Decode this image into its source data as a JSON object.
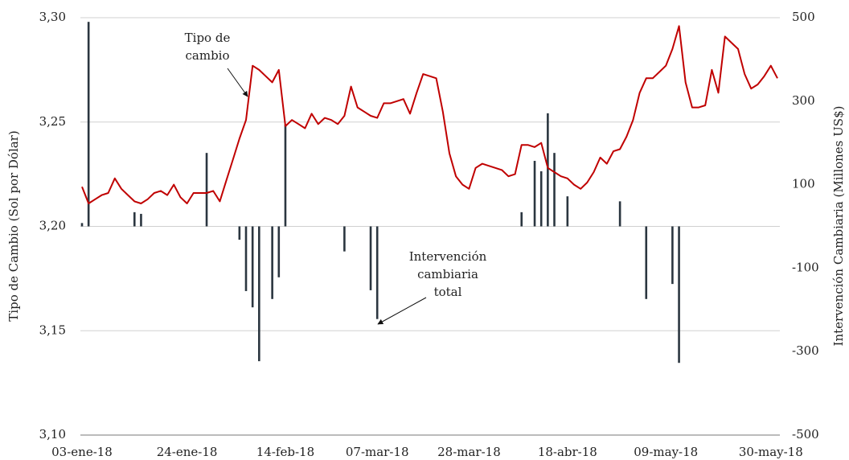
{
  "chart_data": {
    "type": "line",
    "y_label": "Tipo de Cambio (Sol por Dólar)",
    "y2_label": "Intervención Cambiaria (Millones US$)",
    "annotations": [
      "Tipo de",
      "cambio",
      "Intervención",
      "cambiaria",
      "total"
    ],
    "categories": [
      "03-ene-18",
      null,
      null,
      null,
      null,
      null,
      null,
      null,
      null,
      null,
      null,
      null,
      null,
      null,
      null,
      null,
      "24-ene-18",
      null,
      null,
      null,
      null,
      null,
      null,
      null,
      null,
      null,
      null,
      null,
      null,
      null,
      null,
      "14-feb-18",
      null,
      null,
      null,
      null,
      null,
      null,
      null,
      null,
      null,
      null,
      null,
      null,
      null,
      "07-mar-18",
      null,
      null,
      null,
      null,
      null,
      null,
      null,
      null,
      null,
      null,
      null,
      null,
      null,
      "28-mar-18",
      null,
      null,
      null,
      null,
      null,
      null,
      null,
      null,
      null,
      null,
      null,
      null,
      null,
      null,
      "18-abr-18",
      null,
      null,
      null,
      null,
      null,
      null,
      null,
      null,
      null,
      null,
      null,
      null,
      null,
      null,
      "09-may-18",
      null,
      null,
      null,
      null,
      null,
      null,
      null,
      null,
      null,
      null,
      null,
      null,
      null,
      null,
      null,
      "30-may-18",
      null
    ],
    "series": [
      {
        "name": "Tipo de cambio",
        "type": "line",
        "color": "#c00000",
        "values": [
          3.219,
          3.211,
          3.213,
          3.215,
          3.216,
          3.223,
          3.218,
          3.215,
          3.212,
          3.211,
          3.213,
          3.216,
          3.217,
          3.215,
          3.22,
          3.214,
          3.211,
          3.216,
          3.216,
          3.216,
          3.217,
          3.212,
          3.222,
          3.232,
          3.242,
          3.251,
          3.277,
          3.275,
          3.272,
          3.269,
          3.275,
          3.248,
          3.251,
          3.249,
          3.247,
          3.254,
          3.249,
          3.252,
          3.251,
          3.249,
          3.253,
          3.267,
          3.257,
          3.255,
          3.253,
          3.252,
          3.259,
          3.259,
          3.26,
          3.261,
          3.254,
          3.264,
          3.273,
          3.272,
          3.271,
          3.255,
          3.235,
          3.224,
          3.22,
          3.218,
          3.228,
          3.23,
          3.229,
          3.228,
          3.227,
          3.224,
          3.225,
          3.239,
          3.239,
          3.238,
          3.24,
          3.228,
          3.226,
          3.224,
          3.223,
          3.22,
          3.218,
          3.221,
          3.226,
          3.233,
          3.23,
          3.236,
          3.237,
          3.243,
          3.251,
          3.264,
          3.271,
          3.271,
          3.274,
          3.277,
          3.285,
          3.296,
          3.269,
          3.257,
          3.257,
          3.258,
          3.275,
          3.264,
          3.291,
          3.288,
          3.285,
          3.273,
          3.266,
          3.268,
          3.272,
          3.277,
          3.271
        ]
      },
      {
        "name": "Intervención cambiaria total",
        "type": "bar",
        "axis": "y2",
        "color": "#2b3640",
        "values": [
          8,
          490,
          null,
          null,
          null,
          null,
          null,
          null,
          34,
          30,
          null,
          null,
          null,
          null,
          null,
          null,
          null,
          null,
          null,
          176,
          null,
          null,
          null,
          null,
          -32,
          -155,
          -194,
          -323,
          null,
          -174,
          -122,
          244,
          null,
          null,
          null,
          null,
          null,
          null,
          null,
          null,
          -60,
          null,
          null,
          null,
          -153,
          -222,
          null,
          null,
          null,
          null,
          null,
          null,
          null,
          null,
          null,
          null,
          null,
          null,
          null,
          null,
          null,
          null,
          null,
          null,
          null,
          null,
          null,
          34,
          null,
          157,
          132,
          271,
          176,
          null,
          72,
          null,
          null,
          null,
          null,
          null,
          null,
          null,
          60,
          null,
          null,
          null,
          -174,
          null,
          null,
          null,
          -138,
          -327,
          null,
          null,
          null,
          null,
          null,
          null,
          null,
          null,
          null,
          null,
          null,
          null,
          null,
          null,
          null
        ]
      }
    ],
    "ylim": [
      3.1,
      3.3
    ],
    "yticks": [
      {
        "value": 3.1,
        "label": "3,10"
      },
      {
        "value": 3.15,
        "label": "3,15"
      },
      {
        "value": 3.2,
        "label": "3,20"
      },
      {
        "value": 3.25,
        "label": "3,25"
      },
      {
        "value": 3.3,
        "label": "3,30"
      }
    ],
    "y2lim": [
      -500,
      500
    ],
    "y2ticks": [
      -500,
      -300,
      -100,
      100,
      300,
      500
    ],
    "grid": true
  }
}
